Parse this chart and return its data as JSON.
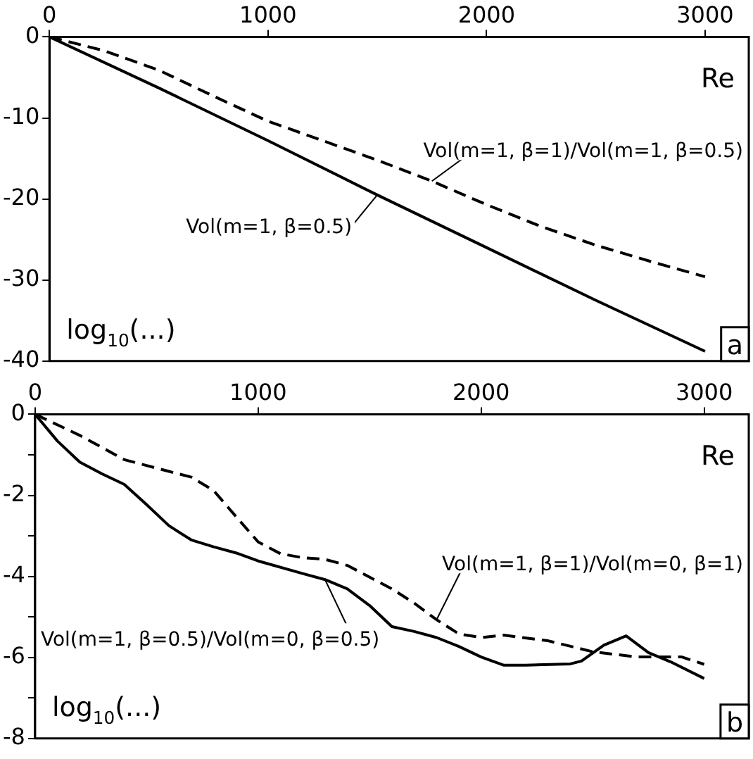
{
  "chart_data": [
    {
      "type": "line",
      "xlabel": "Re",
      "ylabel": "log$_{10}$(...)",
      "annotations": [
        "a"
      ],
      "xlim": [
        0,
        3200
      ],
      "xticks": [
        0,
        1000,
        2000,
        3000
      ],
      "ylim": [
        -40,
        0
      ],
      "yticks": [
        0,
        -10,
        -20,
        -30,
        -40
      ],
      "grid": false,
      "legend": false,
      "marker": "none",
      "series": [
        {
          "name": "Vol(m=1, β=0.5)",
          "color": "#000000",
          "line_style": "solid",
          "x": [
            0,
            500,
            1000,
            1500,
            2000,
            2500,
            3000
          ],
          "values": [
            0,
            -6.3,
            -12.8,
            -19.5,
            -26,
            -32.5,
            -38.8
          ]
        },
        {
          "name": "Vol(m=1, β=1)/Vol(m=1, β=0.5)",
          "color": "#000000",
          "line_style": "dashed",
          "x": [
            0,
            250,
            500,
            750,
            1000,
            1250,
            1500,
            1750,
            2000,
            2250,
            2500,
            2750,
            3000
          ],
          "values": [
            0,
            -1.7,
            -4.1,
            -7.3,
            -10.4,
            -12.8,
            -15.2,
            -17.8,
            -20.7,
            -23.4,
            -25.7,
            -27.7,
            -29.6
          ]
        }
      ]
    },
    {
      "type": "line",
      "xlabel": "Re",
      "ylabel": "log$_{10}$(...)",
      "annotations": [
        "b"
      ],
      "xlim": [
        0,
        3200
      ],
      "xticks": [
        0,
        1000,
        2000,
        3000
      ],
      "ylim": [
        -8,
        0
      ],
      "yticks": [
        0,
        {
          "value": -1,
          "label": null
        },
        -2,
        {
          "value": -3,
          "label": null
        },
        -4,
        {
          "value": -5,
          "label": null
        },
        -6,
        {
          "value": -7,
          "label": null
        },
        -8
      ],
      "grid": false,
      "legend": false,
      "marker": "none",
      "series": [
        {
          "name": "Vol(m=1, β=0.5)/Vol(m=0, β=0.5)",
          "color": "#000000",
          "line_style": "solid",
          "x": [
            0,
            100,
            200,
            300,
            400,
            500,
            600,
            700,
            800,
            900,
            1000,
            1200,
            1300,
            1400,
            1500,
            1600,
            1700,
            1800,
            1900,
            2000,
            2100,
            2200,
            2400,
            2450,
            2550,
            2650,
            2750,
            2850,
            3000
          ],
          "values": [
            0,
            -0.66,
            -1.18,
            -1.47,
            -1.73,
            -2.23,
            -2.75,
            -3.1,
            -3.27,
            -3.42,
            -3.62,
            -3.93,
            -4.08,
            -4.31,
            -4.72,
            -5.24,
            -5.36,
            -5.51,
            -5.73,
            -5.99,
            -6.19,
            -6.19,
            -6.16,
            -6.09,
            -5.7,
            -5.47,
            -5.88,
            -6.11,
            -6.52
          ]
        },
        {
          "name": "Vol(m=1, β=1)/Vol(m=0, β=1)",
          "color": "#000000",
          "line_style": "dashed",
          "x": [
            0,
            200,
            400,
            600,
            700,
            800,
            900,
            1000,
            1100,
            1200,
            1300,
            1400,
            1500,
            1600,
            1700,
            1800,
            1900,
            2000,
            2100,
            2300,
            2500,
            2700,
            2900,
            3000
          ],
          "values": [
            0,
            -0.52,
            -1.12,
            -1.41,
            -1.55,
            -1.88,
            -2.52,
            -3.15,
            -3.44,
            -3.54,
            -3.58,
            -3.73,
            -4.02,
            -4.31,
            -4.66,
            -5.07,
            -5.42,
            -5.51,
            -5.45,
            -5.59,
            -5.86,
            -5.99,
            -5.99,
            -6.17
          ]
        }
      ]
    }
  ]
}
